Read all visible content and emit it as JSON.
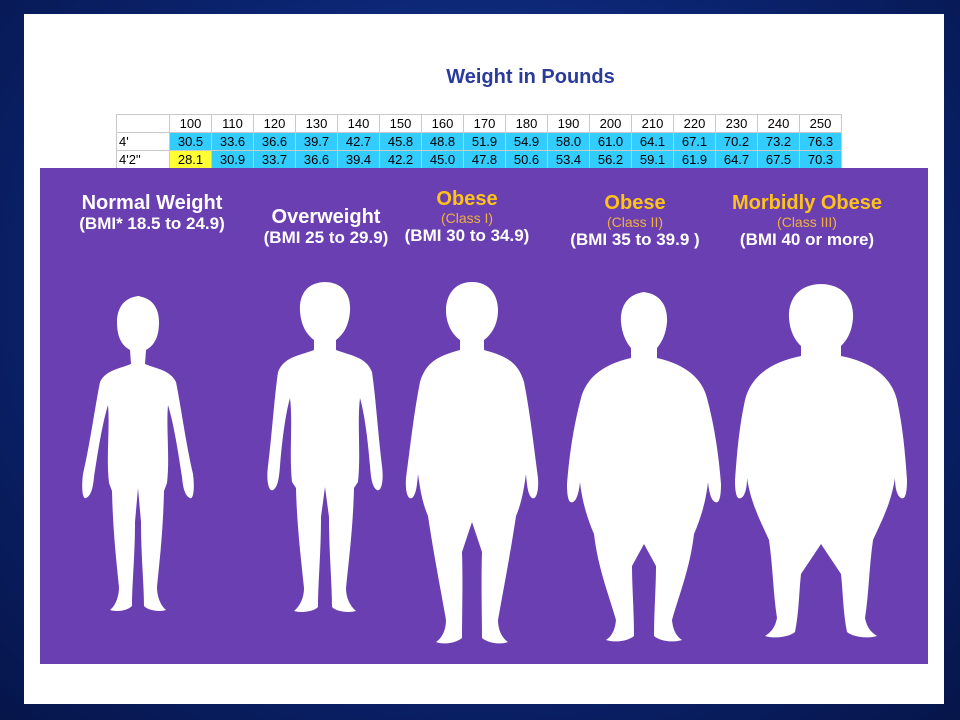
{
  "table": {
    "title": "Weight in Pounds",
    "header": [
      "100",
      "110",
      "120",
      "130",
      "140",
      "150",
      "160",
      "170",
      "180",
      "190",
      "200",
      "210",
      "220",
      "230",
      "240",
      "250"
    ],
    "rows": [
      {
        "label": "4'",
        "values": [
          "30.5",
          "33.6",
          "36.6",
          "39.7",
          "42.7",
          "45.8",
          "48.8",
          "51.9",
          "54.9",
          "58.0",
          "61.0",
          "64.1",
          "67.1",
          "70.2",
          "73.2",
          "76.3"
        ]
      },
      {
        "label": "4'2\"",
        "values": [
          "28.1",
          "30.9",
          "33.7",
          "36.6",
          "39.4",
          "42.2",
          "45.0",
          "47.8",
          "50.6",
          "53.4",
          "56.2",
          "59.1",
          "61.9",
          "64.7",
          "67.5",
          "70.3"
        ]
      }
    ]
  },
  "categories": [
    {
      "name": "Normal Weight",
      "class": "",
      "bmi": "(BMI* 18.5 to 24.9)"
    },
    {
      "name": "Overweight",
      "class": "",
      "bmi": "(BMI 25 to 29.9)"
    },
    {
      "name": "Obese",
      "class": "(Class I)",
      "bmi": "(BMI 30 to 34.9)"
    },
    {
      "name": "Obese",
      "class": "(Class II)",
      "bmi": "(BMI 35 to 39.9 )"
    },
    {
      "name": "Morbidly Obese",
      "class": "(Class III)",
      "bmi": "(BMI 40 or more)"
    }
  ],
  "colors": {
    "panel": "#6a3fb2",
    "title": "#2a3b9b",
    "obese_label": "#ffc21a",
    "table_value": "#33ccff",
    "table_highlight": "#ffff33"
  }
}
